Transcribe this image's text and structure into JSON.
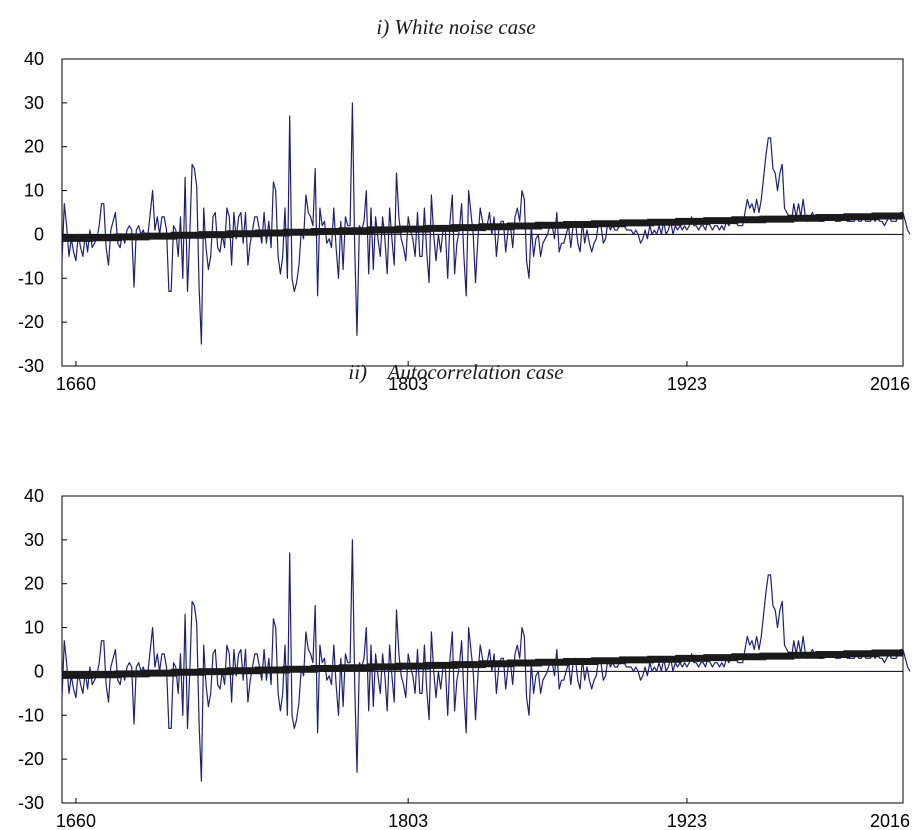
{
  "chart_data": [
    {
      "type": "line",
      "title": "i) White noise case",
      "xlabel": "",
      "ylabel": "",
      "xlim": [
        1654,
        2016
      ],
      "ylim": [
        -30,
        40
      ],
      "yticks": [
        "40",
        "30",
        "20",
        "10",
        "0",
        "-10",
        "-20",
        "-30"
      ],
      "xticks": [
        "1660",
        "1803",
        "1923",
        "2016"
      ],
      "grid": false,
      "series": [
        {
          "role": "observed",
          "color": "#1f1f7a",
          "x_start": 1654,
          "x_step": 1,
          "values": [
            -6,
            7,
            2,
            -5,
            -1,
            -4,
            -6,
            0,
            -3,
            -5,
            0,
            -4,
            1,
            -3,
            -2,
            -1,
            2,
            7,
            7,
            -3,
            -7,
            1,
            3,
            5,
            -2,
            -3,
            0,
            -2,
            1,
            2,
            1,
            -12,
            1,
            2,
            0,
            1,
            -1,
            0,
            5,
            10,
            1,
            4,
            0,
            4,
            4,
            1,
            -13,
            -13,
            2,
            1,
            -5,
            4,
            -10,
            13,
            -13,
            0,
            16,
            15,
            11,
            -12,
            -25,
            6,
            -3,
            -8,
            -5,
            4,
            5,
            -3,
            -4,
            0,
            -3,
            6,
            4,
            -7,
            5,
            -1,
            4,
            5,
            -2,
            5,
            -7,
            -2,
            1,
            4,
            4,
            1,
            -2,
            5,
            -2,
            3,
            -3,
            12,
            10,
            -5,
            -9,
            -5,
            6,
            -10,
            27,
            -10,
            -13,
            -11,
            -7,
            1,
            -1,
            9,
            5,
            4,
            2,
            15,
            -14,
            6,
            2,
            3,
            -2,
            -1,
            -3,
            6,
            -3,
            -10,
            3,
            -8,
            4,
            2,
            2,
            30,
            -3,
            -23,
            2,
            1,
            3,
            10,
            -9,
            6,
            -8,
            4,
            -1,
            -5,
            4,
            -1,
            -9,
            6,
            -1,
            -7,
            14,
            4,
            -1,
            -3,
            -6,
            4,
            1,
            -1,
            -5,
            5,
            -5,
            -5,
            6,
            -4,
            -11,
            9,
            0,
            -6,
            0,
            -4,
            1,
            1,
            -10,
            3,
            9,
            -9,
            -2,
            1,
            7,
            -5,
            -14,
            10,
            5,
            0,
            -11,
            -1,
            6,
            3,
            1,
            2,
            5,
            0,
            4,
            -5,
            1,
            3,
            3,
            -4,
            1,
            2,
            -3,
            4,
            6,
            3,
            10,
            8,
            -6,
            -10,
            2,
            -5,
            -1,
            0,
            -5,
            -2,
            -1,
            0,
            2,
            2,
            -1,
            5,
            -4,
            -2,
            -2,
            0,
            2,
            -3,
            2,
            3,
            -2,
            -4,
            3,
            -2,
            1,
            -2,
            -4,
            -2,
            -1,
            3,
            2,
            -2,
            -1,
            3,
            1,
            2,
            1,
            1,
            2,
            2,
            2,
            1,
            1,
            1,
            0,
            1,
            0,
            -2,
            -1,
            1,
            -1,
            2,
            0,
            1,
            0,
            2,
            0,
            3,
            0,
            1,
            3,
            0,
            2,
            1,
            2,
            1,
            2,
            1,
            2,
            4,
            2,
            2,
            1,
            2,
            2,
            1,
            3,
            2,
            1,
            2,
            2,
            1,
            2,
            1,
            3,
            2,
            3,
            4,
            3,
            2,
            2,
            2,
            5,
            8,
            6,
            7,
            5,
            8,
            5,
            8,
            13,
            18,
            22,
            22,
            15,
            14,
            10,
            14,
            16,
            6,
            5,
            4,
            3,
            7,
            4,
            7,
            4,
            8,
            4,
            3,
            4,
            5,
            4,
            4,
            3,
            3,
            3,
            4,
            4,
            4,
            4,
            3,
            3,
            3,
            4,
            4,
            3,
            3,
            3,
            3,
            4,
            3,
            3,
            4,
            3,
            3,
            3,
            4,
            3,
            4,
            3,
            3,
            2,
            3,
            4,
            3,
            3,
            3,
            4,
            5,
            5,
            3,
            1,
            0
          ]
        },
        {
          "role": "trend",
          "color": "#1a1a1a",
          "x": [
            1654,
            2016
          ],
          "values": [
            -1,
            4.3
          ]
        }
      ]
    },
    {
      "type": "line",
      "title": "ii)    Autocorrelation case",
      "xlabel": "",
      "ylabel": "",
      "xlim": [
        1654,
        2016
      ],
      "ylim": [
        -30,
        40
      ],
      "yticks": [
        "40",
        "30",
        "20",
        "10",
        "0",
        "-10",
        "-20",
        "-30"
      ],
      "xticks": [
        "1660",
        "1803",
        "1923",
        "2016"
      ],
      "grid": false,
      "series": [
        {
          "role": "observed",
          "color": "#1f1f7a",
          "same_as_panel": 0
        },
        {
          "role": "trend",
          "color": "#1a1a1a",
          "x": [
            1654,
            2016
          ],
          "values": [
            -1,
            4.3
          ]
        }
      ]
    }
  ]
}
